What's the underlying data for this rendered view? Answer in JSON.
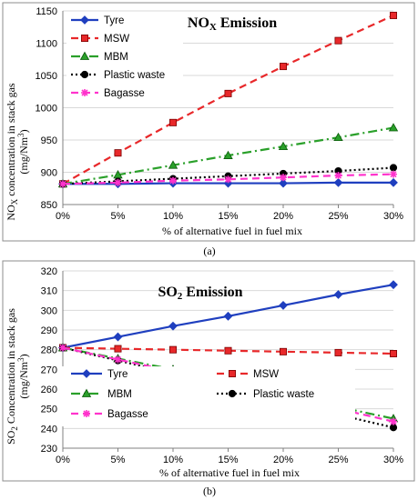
{
  "colors": {
    "Tyre": "#1f3fbf",
    "MSW": "#e8282a",
    "MBM": "#2aa02a",
    "Plastic waste": "#000000",
    "Bagasse": "#ff33cc"
  },
  "chart_data": [
    {
      "type": "line",
      "panel_caption": "(a)",
      "title_main": "NO",
      "title_sub": "X",
      "title_rest": " Emission",
      "ylabel_line1_main": "NO",
      "ylabel_line1_sub": "X",
      "ylabel_line1_rest": " concentration in stack gas",
      "ylabel_line2_main": "(mg/Nm",
      "ylabel_line2_sup": "3",
      "ylabel_line2_rest": ")",
      "xlabel": "% of  alternative fuel in fuel mix",
      "categories": [
        "0%",
        "5%",
        "10%",
        "15%",
        "20%",
        "25%",
        "30%"
      ],
      "ylim": [
        850,
        1150
      ],
      "yticks": [
        850,
        900,
        950,
        1000,
        1050,
        1100,
        1150
      ],
      "grid": "horizontal",
      "legend_position": "top-left",
      "series": [
        {
          "name": "Tyre",
          "marker": "diamond",
          "dash": "solid",
          "values": [
            882,
            882,
            883,
            883,
            883,
            884,
            884
          ]
        },
        {
          "name": "MSW",
          "marker": "square",
          "dash": "dash",
          "values": [
            882,
            930,
            977,
            1022,
            1064,
            1104,
            1143
          ]
        },
        {
          "name": "MBM",
          "marker": "triangle",
          "dash": "dashdot",
          "values": [
            882,
            896,
            911,
            926,
            940,
            954,
            969
          ]
        },
        {
          "name": "Plastic waste",
          "marker": "circle",
          "dash": "dot",
          "values": [
            882,
            886,
            890,
            894,
            898,
            902,
            907
          ]
        },
        {
          "name": "Bagasse",
          "marker": "asterisk",
          "dash": "dash",
          "values": [
            882,
            884,
            887,
            889,
            892,
            895,
            897
          ]
        }
      ]
    },
    {
      "type": "line",
      "panel_caption": "(b)",
      "title_main": "SO",
      "title_sub": "2",
      "title_rest": " Emission",
      "ylabel_line1_main": "SO",
      "ylabel_line1_sub": "2",
      "ylabel_line1_rest": " Concentration in stack gas",
      "ylabel_line2_main": "(mg/Nm",
      "ylabel_line2_sup": "3",
      "ylabel_line2_rest": ")",
      "xlabel": "% of  alternative fuel in fuel mix",
      "categories": [
        "0%",
        "5%",
        "10%",
        "15%",
        "20%",
        "25%",
        "30%"
      ],
      "ylim": [
        230,
        320
      ],
      "yticks": [
        230,
        240,
        250,
        260,
        270,
        280,
        290,
        300,
        310,
        320
      ],
      "grid": "horizontal",
      "legend_position": "middle",
      "series": [
        {
          "name": "Tyre",
          "marker": "diamond",
          "dash": "solid",
          "values": [
            281,
            286.5,
            292,
            297,
            302.5,
            308,
            313
          ]
        },
        {
          "name": "MSW",
          "marker": "square",
          "dash": "dash",
          "values": [
            281,
            280.5,
            280,
            279.5,
            279,
            278.5,
            278
          ]
        },
        {
          "name": "MBM",
          "marker": "triangle",
          "dash": "dashdot",
          "values": [
            281,
            275.5,
            270,
            263.5,
            257,
            251,
            245
          ]
        },
        {
          "name": "Plastic waste",
          "marker": "circle",
          "dash": "dot",
          "values": [
            281,
            274.5,
            268,
            261,
            254,
            247,
            240.5
          ]
        },
        {
          "name": "Bagasse",
          "marker": "asterisk",
          "dash": "dash",
          "values": [
            281,
            275,
            269,
            262.5,
            256.5,
            250,
            243.5
          ]
        }
      ]
    }
  ]
}
